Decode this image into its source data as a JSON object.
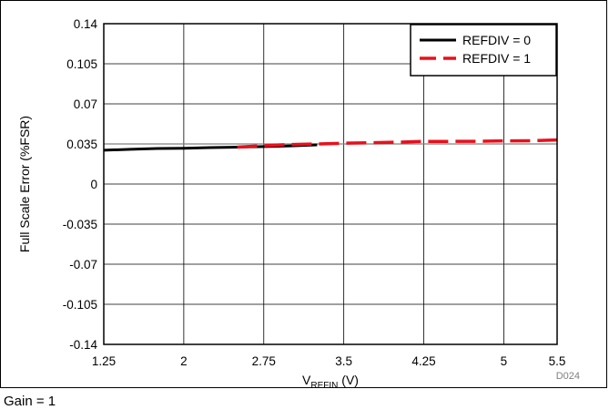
{
  "chart_data": {
    "type": "line",
    "title": "",
    "xlabel": {
      "main": "V",
      "sub": "REFIN",
      "unit": " (V)"
    },
    "ylabel": "Full Scale Error (%FSR)",
    "xlim": [
      1.25,
      5.5
    ],
    "ylim": [
      -0.14,
      0.14
    ],
    "xticks": [
      "1.25",
      "2",
      "2.75",
      "3.5",
      "4.25",
      "5",
      "5.5"
    ],
    "xtick_values": [
      1.25,
      2,
      2.75,
      3.5,
      4.25,
      5,
      5.5
    ],
    "yticks": [
      "0.14",
      "0.105",
      "0.07",
      "0.035",
      "0",
      "-0.035",
      "-0.07",
      "-0.105",
      "-0.14"
    ],
    "ytick_values": [
      0.14,
      0.105,
      0.07,
      0.035,
      0,
      -0.035,
      -0.07,
      -0.105,
      -0.14
    ],
    "grid": true,
    "legend_position": "top-right",
    "series": [
      {
        "name": "REFDIV = 0",
        "color": "#000000",
        "style": "solid",
        "x": [
          1.25,
          1.5,
          1.75,
          2.0,
          2.25,
          2.5,
          2.75,
          3.0,
          3.25
        ],
        "y": [
          0.0295,
          0.0303,
          0.031,
          0.0313,
          0.0318,
          0.0322,
          0.0327,
          0.0333,
          0.0342
        ]
      },
      {
        "name": "REFDIV = 1",
        "color": "#e8101c",
        "style": "dashed",
        "x": [
          2.5,
          2.75,
          3.0,
          3.25,
          3.5,
          3.75,
          4.0,
          4.25,
          4.5,
          4.75,
          5.0,
          5.25,
          5.5
        ],
        "y": [
          0.0322,
          0.0335,
          0.0345,
          0.035,
          0.0356,
          0.036,
          0.0365,
          0.0372,
          0.0372,
          0.0373,
          0.0377,
          0.0378,
          0.0385
        ]
      }
    ],
    "ref_line": {
      "y": 0.035,
      "color": "#808080"
    },
    "code": "D024"
  },
  "footnote": "Gain = 1"
}
